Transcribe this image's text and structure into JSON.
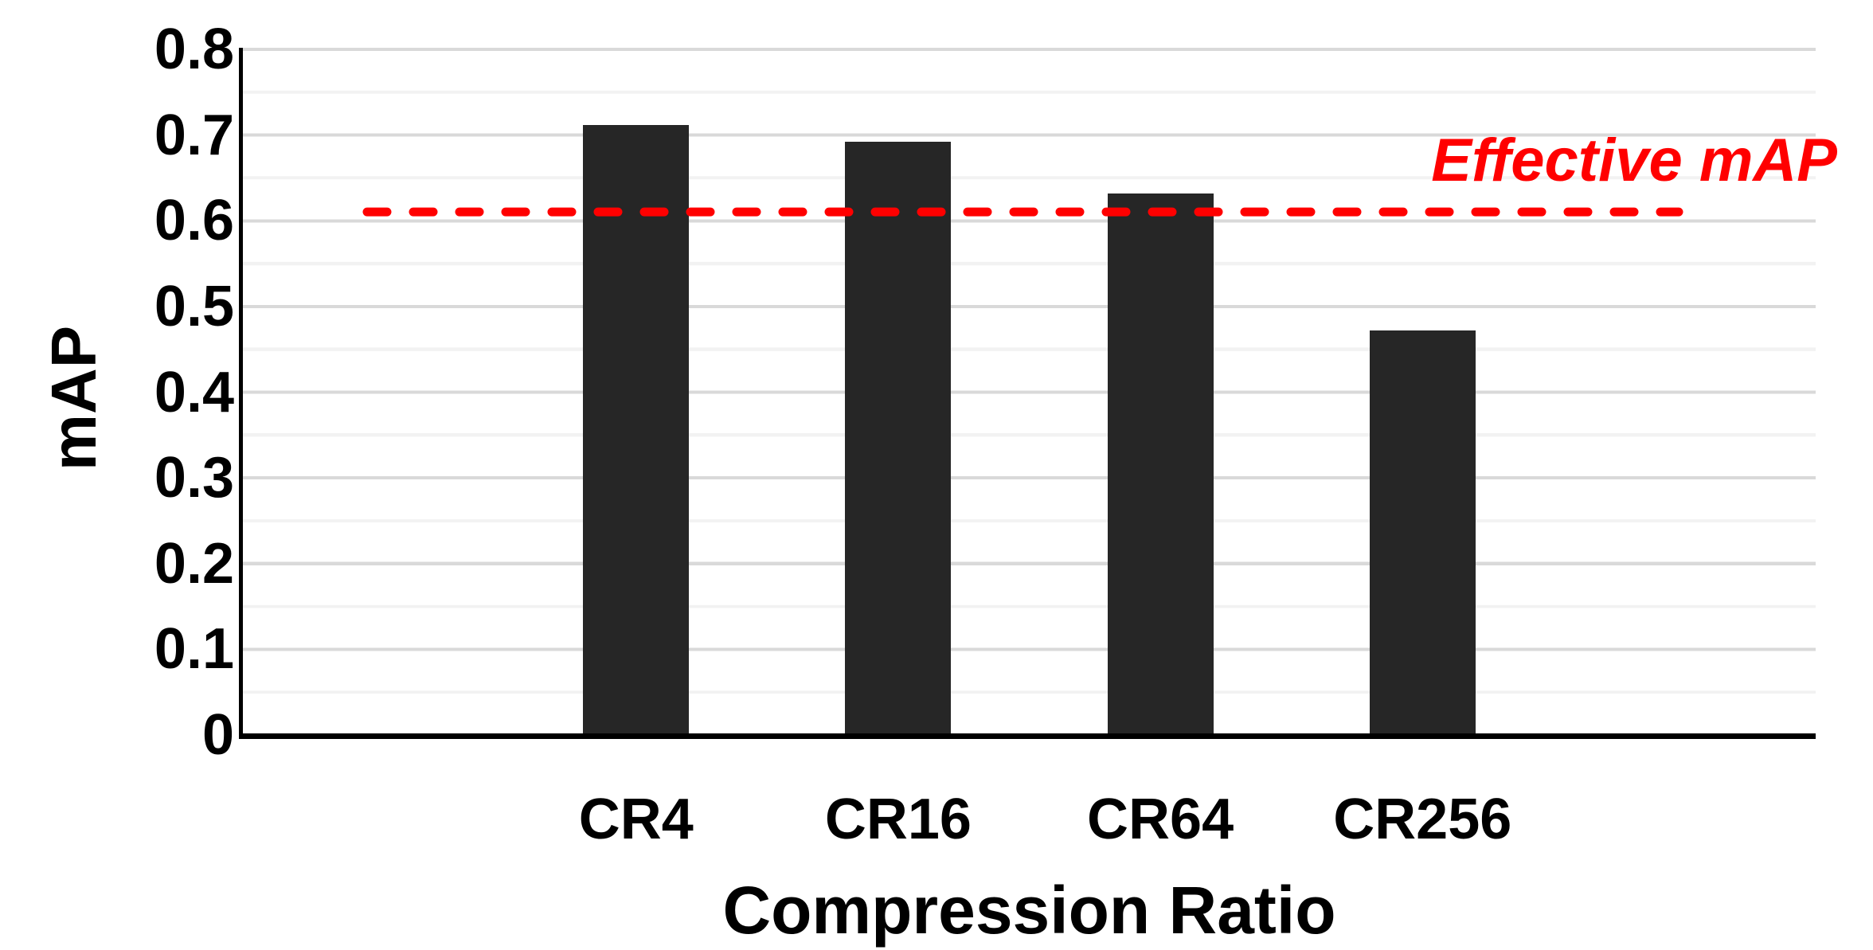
{
  "chart_data": {
    "type": "bar",
    "title": "",
    "xlabel": "Compression Ratio",
    "ylabel": "mAP",
    "categories": [
      "CR4",
      "CR16",
      "CR64",
      "CR256"
    ],
    "values": [
      0.71,
      0.69,
      0.63,
      0.47
    ],
    "ylim": [
      0,
      0.8
    ],
    "ytick_step": 0.1,
    "yticks": [
      "0.8",
      "0.7",
      "0.6",
      "0.5",
      "0.4",
      "0.3",
      "0.2",
      "0.1",
      "0"
    ],
    "legend_position": "none",
    "grid": "horizontal major (0.1) and minor (0.05) lines",
    "annotation": {
      "label": "Effective mAP",
      "value": 0.61,
      "style": "horizontal dashed line"
    },
    "colors": {
      "bar": "#262626",
      "effective_line": "#FF0000",
      "annotation_text": "#FF0000",
      "major_gridline": "#D9D9D9",
      "minor_gridline": "#F2F2F2",
      "axis": "#000000"
    }
  }
}
